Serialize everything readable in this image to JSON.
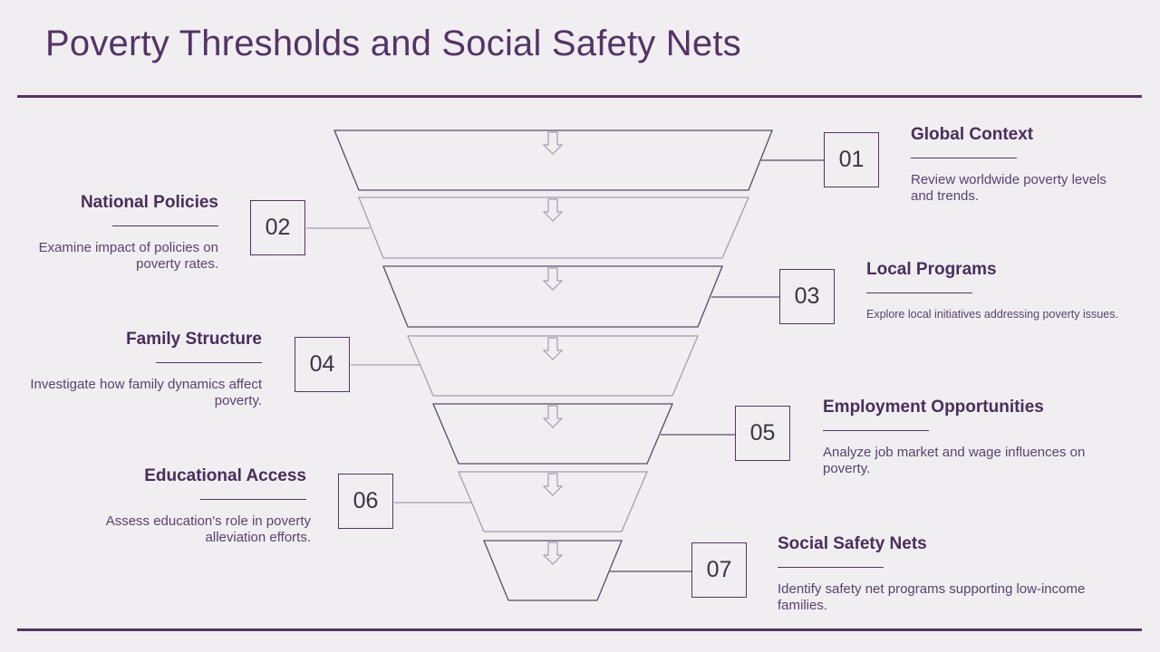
{
  "title": "Poverty Thresholds and Social Safety Nets",
  "colors": {
    "accent": "#553366",
    "odd_stroke": "#5a4a66",
    "even_stroke": "#a89cb0",
    "background": "#f0eef1"
  },
  "arrow_icon": "down-arrow-outline-icon",
  "steps": [
    {
      "number": "01",
      "title": "Global Context",
      "description": "Review worldwide poverty levels and trends."
    },
    {
      "number": "02",
      "title": "National Policies",
      "description": "Examine impact of policies on poverty rates."
    },
    {
      "number": "03",
      "title": "Local Programs",
      "description": "Explore local initiatives addressing poverty issues."
    },
    {
      "number": "04",
      "title": "Family Structure",
      "description": "Investigate how family dynamics affect poverty."
    },
    {
      "number": "05",
      "title": "Employment Opportunities",
      "description": "Analyze job market and wage influences on poverty."
    },
    {
      "number": "06",
      "title": "Educational Access",
      "description": "Assess education's role in poverty alleviation efforts."
    },
    {
      "number": "07",
      "title": "Social Safety Nets",
      "description": "Identify safety net programs supporting low-income families."
    }
  ]
}
